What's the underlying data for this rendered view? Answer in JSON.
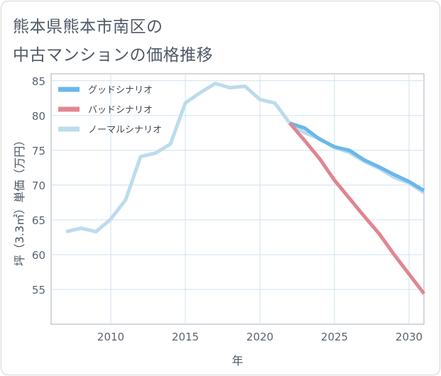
{
  "title_lines": [
    "熊本県熊本市南区の",
    "中古マンションの価格推移"
  ],
  "chart_data": {
    "type": "line",
    "title": "熊本県熊本市南区の中古マンションの価格推移",
    "xlabel": "年",
    "ylabel": "坪（3.3㎡）単価（万円）",
    "xlim": [
      2006,
      2031
    ],
    "ylim": [
      50,
      86
    ],
    "xticks": [
      2010,
      2015,
      2020,
      2025,
      2030
    ],
    "yticks": [
      55,
      60,
      65,
      70,
      75,
      80,
      85
    ],
    "grid": true,
    "legend_position": "top-left",
    "series": [
      {
        "name": "グッドシナリオ",
        "color": "#6bb7ea",
        "x": [
          2022,
          2023,
          2024,
          2025,
          2026,
          2027,
          2028,
          2029,
          2030,
          2031
        ],
        "values": [
          78.9,
          78.2,
          76.6,
          75.5,
          75.0,
          73.6,
          72.6,
          71.5,
          70.5,
          69.2
        ]
      },
      {
        "name": "バッドシナリオ",
        "color": "#e0868f",
        "x": [
          2022,
          2023,
          2024,
          2025,
          2026,
          2027,
          2028,
          2029,
          2030,
          2031
        ],
        "values": [
          78.9,
          76.4,
          73.8,
          70.7,
          68.1,
          65.5,
          63.0,
          60.0,
          57.2,
          54.4
        ]
      },
      {
        "name": "ノーマルシナリオ",
        "color": "#bcdcec",
        "x": [
          2007,
          2008,
          2009,
          2010,
          2011,
          2012,
          2013,
          2014,
          2015,
          2016,
          2017,
          2018,
          2019,
          2020,
          2021,
          2022,
          2023,
          2024,
          2025,
          2026,
          2027,
          2028,
          2029,
          2030,
          2031
        ],
        "values": [
          63.3,
          63.8,
          63.3,
          65.1,
          67.9,
          74.1,
          74.6,
          75.9,
          81.8,
          83.3,
          84.6,
          84.0,
          84.2,
          82.3,
          81.8,
          78.9,
          77.5,
          76.7,
          75.4,
          74.7,
          73.4,
          72.4,
          71.1,
          70.3,
          68.9
        ]
      }
    ]
  }
}
